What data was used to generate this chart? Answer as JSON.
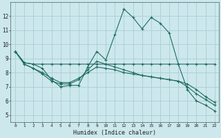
{
  "xlabel": "Humidex (Indice chaleur)",
  "bg_color": "#cce8ec",
  "grid_color": "#aacdd4",
  "line_color": "#1e6b5e",
  "series": [
    [
      9.5,
      8.7,
      8.6,
      8.3,
      7.5,
      7.0,
      7.1,
      7.1,
      8.4,
      9.5,
      8.9,
      10.7,
      12.5,
      11.9,
      11.1,
      11.9,
      11.5,
      10.8,
      8.6,
      6.8,
      6.0,
      5.7,
      5.3
    ],
    [
      9.5,
      8.7,
      8.6,
      8.6,
      8.6,
      8.6,
      8.6,
      8.6,
      8.6,
      8.6,
      8.6,
      8.6,
      8.6,
      8.6,
      8.6,
      8.6,
      8.6,
      8.6,
      8.6,
      8.6,
      8.6,
      8.6,
      8.6
    ],
    [
      9.5,
      8.6,
      8.3,
      8.0,
      7.6,
      7.3,
      7.3,
      7.6,
      8.0,
      8.4,
      8.3,
      8.2,
      8.0,
      7.9,
      7.8,
      7.7,
      7.6,
      7.5,
      7.4,
      7.2,
      6.8,
      6.3,
      5.9
    ],
    [
      9.5,
      8.6,
      8.3,
      7.9,
      7.4,
      7.2,
      7.2,
      7.5,
      8.2,
      8.8,
      8.6,
      8.4,
      8.2,
      8.0,
      7.8,
      7.7,
      7.6,
      7.5,
      7.4,
      7.0,
      6.5,
      6.1,
      5.7
    ]
  ],
  "ylim": [
    4.5,
    13.0
  ],
  "yticks": [
    5,
    6,
    7,
    8,
    9,
    10,
    11,
    12
  ],
  "n_points": 23
}
